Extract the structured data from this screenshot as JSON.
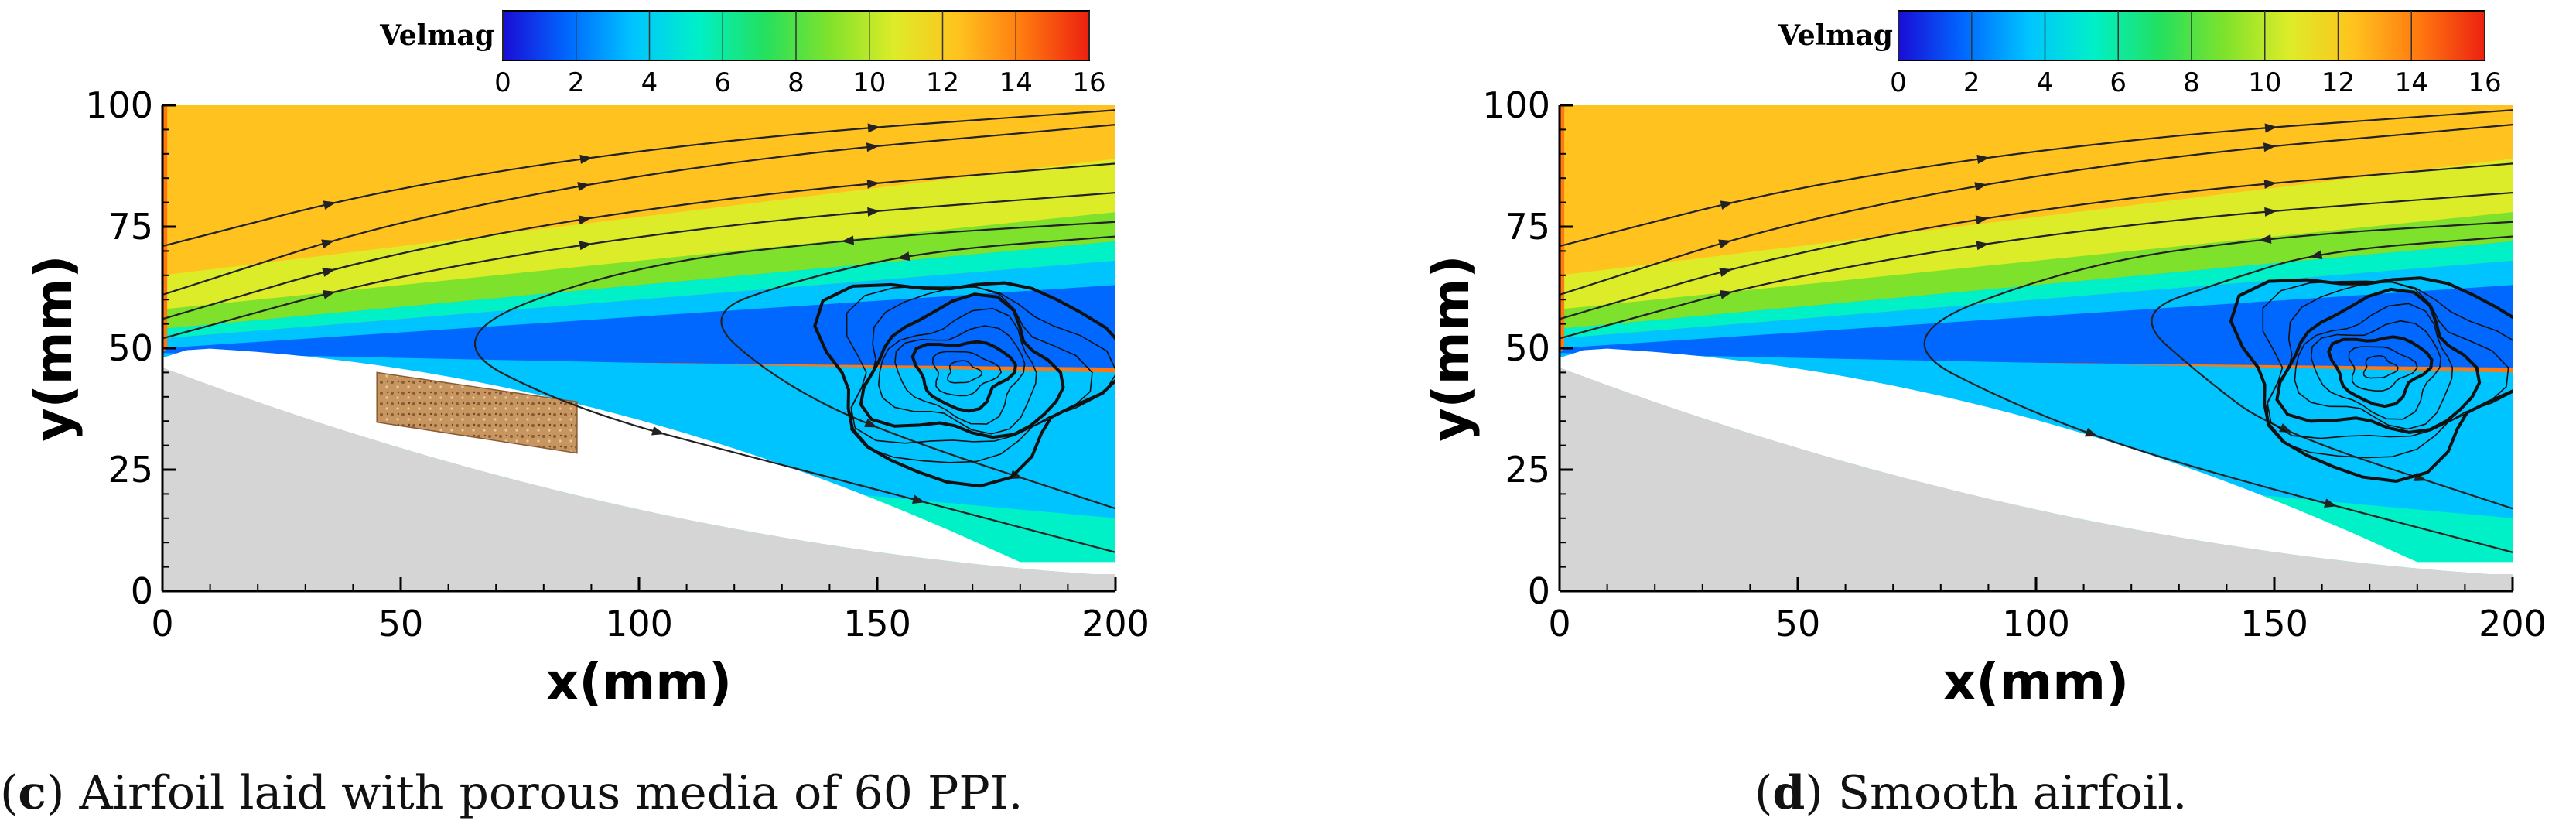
{
  "chart_data": [
    {
      "type": "heatmap",
      "panel_label": "c",
      "caption": "Airfoil laid with porous media of 60 PPI.",
      "xlabel": "x(mm)",
      "ylabel": "y(mm)",
      "xlim": [
        0,
        200
      ],
      "ylim": [
        0,
        100
      ],
      "x_ticks": [
        0,
        50,
        100,
        150,
        200
      ],
      "y_ticks": [
        0,
        25,
        50,
        75,
        100
      ],
      "colorbar": {
        "title": "Velmag",
        "range": [
          0,
          16
        ],
        "ticks": [
          0,
          2,
          4,
          6,
          8,
          10,
          12,
          14,
          16
        ],
        "colors": [
          "#1a0cd6",
          "#0068ff",
          "#00c4ff",
          "#00f0c8",
          "#22e060",
          "#7ee22c",
          "#ddec28",
          "#ffc21e",
          "#ff7810",
          "#ec2010"
        ]
      },
      "porous_media": {
        "x_range": [
          45,
          87
        ],
        "y_range": [
          30,
          45
        ],
        "pores_per_inch": 60
      },
      "vortex_center": [
        168,
        45
      ],
      "recirculation_turning_x": [
        57,
        113
      ]
    },
    {
      "type": "heatmap",
      "panel_label": "d",
      "caption": "Smooth airfoil.",
      "xlabel": "x(mm)",
      "ylabel": "y(mm)",
      "xlim": [
        0,
        200
      ],
      "ylim": [
        0,
        100
      ],
      "x_ticks": [
        0,
        50,
        100,
        150,
        200
      ],
      "y_ticks": [
        0,
        25,
        50,
        75,
        100
      ],
      "colorbar": {
        "title": "Velmag",
        "range": [
          0,
          16
        ],
        "ticks": [
          0,
          2,
          4,
          6,
          8,
          10,
          12,
          14,
          16
        ],
        "colors": [
          "#1a0cd6",
          "#0068ff",
          "#00c4ff",
          "#00f0c8",
          "#22e060",
          "#7ee22c",
          "#ddec28",
          "#ffc21e",
          "#ff7810",
          "#ec2010"
        ]
      },
      "vortex_center": [
        172,
        46
      ],
      "recirculation_turning_x": [
        68,
        120
      ]
    }
  ]
}
